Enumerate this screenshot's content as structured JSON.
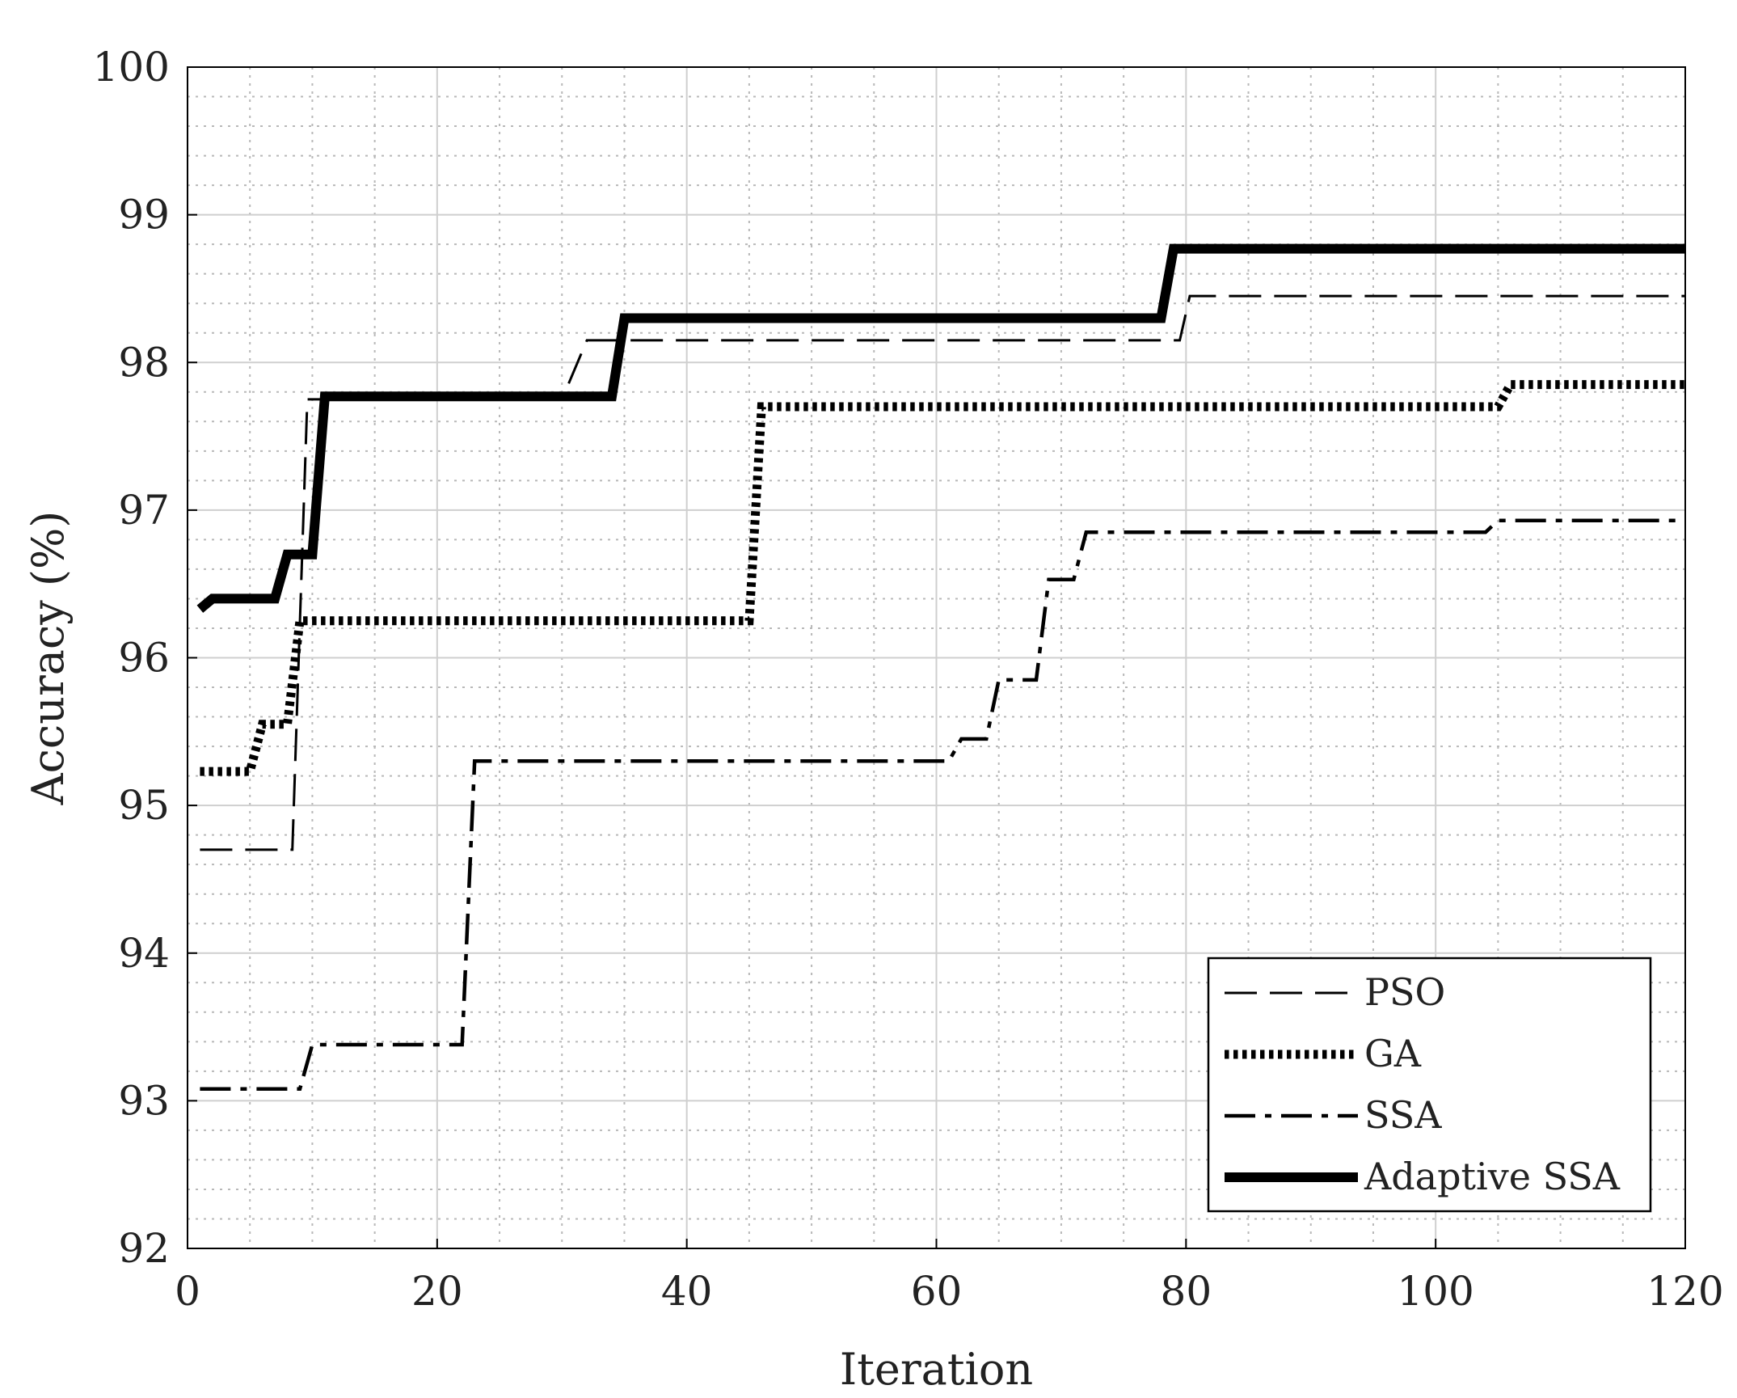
{
  "chart_data": {
    "type": "line",
    "title": "",
    "xlabel": "Iteration",
    "ylabel": "Accuracy (%)",
    "xlim": [
      0,
      120
    ],
    "ylim": [
      92,
      100
    ],
    "xticks": [
      0,
      20,
      40,
      60,
      80,
      100,
      120
    ],
    "yticks": [
      92,
      93,
      94,
      95,
      96,
      97,
      98,
      99,
      100
    ],
    "grid": true,
    "minor_grid": true,
    "legend_position": "bottom-right",
    "series": [
      {
        "name": "PSO",
        "style": "dashed",
        "color": "#000000",
        "points": [
          [
            1,
            94.7
          ],
          [
            8,
            94.7
          ],
          [
            8.4,
            94.7
          ],
          [
            9.6,
            97.75
          ],
          [
            30,
            97.75
          ],
          [
            32,
            98.15
          ],
          [
            78,
            98.15
          ],
          [
            79.5,
            98.15
          ],
          [
            80.3,
            98.45
          ],
          [
            120,
            98.45
          ]
        ]
      },
      {
        "name": "GA",
        "style": "dotted",
        "color": "#000000",
        "points": [
          [
            1,
            95.23
          ],
          [
            5,
            95.23
          ],
          [
            6,
            95.55
          ],
          [
            8,
            95.55
          ],
          [
            9,
            96.25
          ],
          [
            45,
            96.25
          ],
          [
            46,
            97.7
          ],
          [
            105,
            97.7
          ],
          [
            106,
            97.85
          ],
          [
            120,
            97.85
          ]
        ]
      },
      {
        "name": "SSA",
        "style": "dashdot",
        "color": "#000000",
        "points": [
          [
            1,
            93.08
          ],
          [
            9,
            93.08
          ],
          [
            10,
            93.38
          ],
          [
            22,
            93.38
          ],
          [
            23,
            95.3
          ],
          [
            61,
            95.3
          ],
          [
            62,
            95.45
          ],
          [
            64,
            95.45
          ],
          [
            65,
            95.85
          ],
          [
            68,
            95.85
          ],
          [
            69,
            96.53
          ],
          [
            71,
            96.53
          ],
          [
            72,
            96.85
          ],
          [
            104,
            96.85
          ],
          [
            105,
            96.93
          ],
          [
            120,
            96.93
          ]
        ]
      },
      {
        "name": "Adaptive SSA",
        "style": "solid-thick",
        "color": "#000000",
        "points": [
          [
            1,
            96.33
          ],
          [
            2,
            96.4
          ],
          [
            7,
            96.4
          ],
          [
            8,
            96.7
          ],
          [
            10,
            96.7
          ],
          [
            11,
            97.77
          ],
          [
            34,
            97.77
          ],
          [
            35,
            98.3
          ],
          [
            78,
            98.3
          ],
          [
            79,
            98.77
          ],
          [
            120,
            98.77
          ]
        ]
      }
    ]
  }
}
